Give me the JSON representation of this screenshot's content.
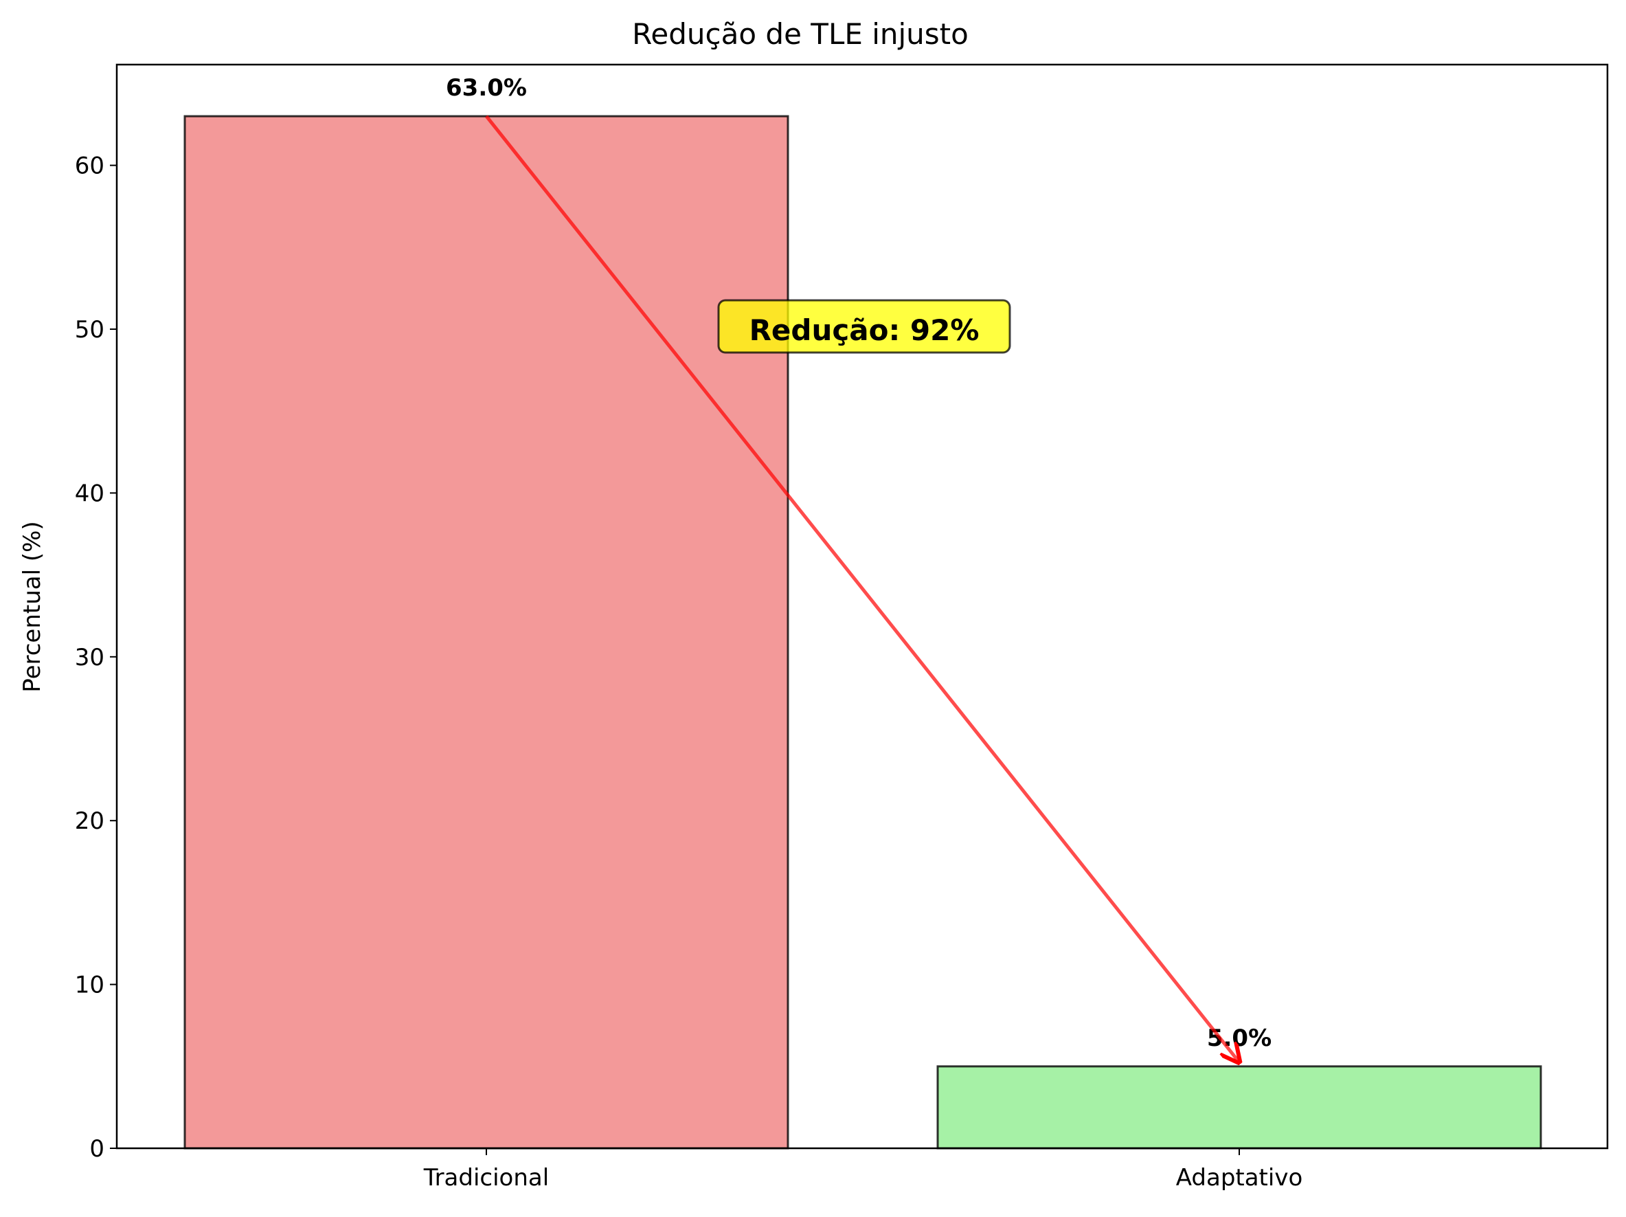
{
  "chart_data": {
    "type": "bar",
    "title": "Redução de TLE injusto",
    "xlabel": "",
    "ylabel": "Percentual (%)",
    "categories": [
      "Tradicional",
      "Adaptativo"
    ],
    "values": [
      63.0,
      5.0
    ],
    "value_labels": [
      "63.0%",
      "5.0%"
    ],
    "ylim": [
      0,
      66.15
    ],
    "yticks": [
      0,
      10,
      20,
      30,
      40,
      50,
      60
    ],
    "bar_colors": [
      "#f08080",
      "#90ee90"
    ],
    "bar_edge_color": "#000000",
    "grid": false,
    "annotation": {
      "text": "Redução: 92%",
      "anchor": [
        0.5,
        50
      ],
      "arrow_from": [
        0,
        63.0
      ],
      "arrow_to": [
        1,
        5.0
      ],
      "arrow_color": "#ff0000",
      "box_color": "#ffff00"
    }
  }
}
